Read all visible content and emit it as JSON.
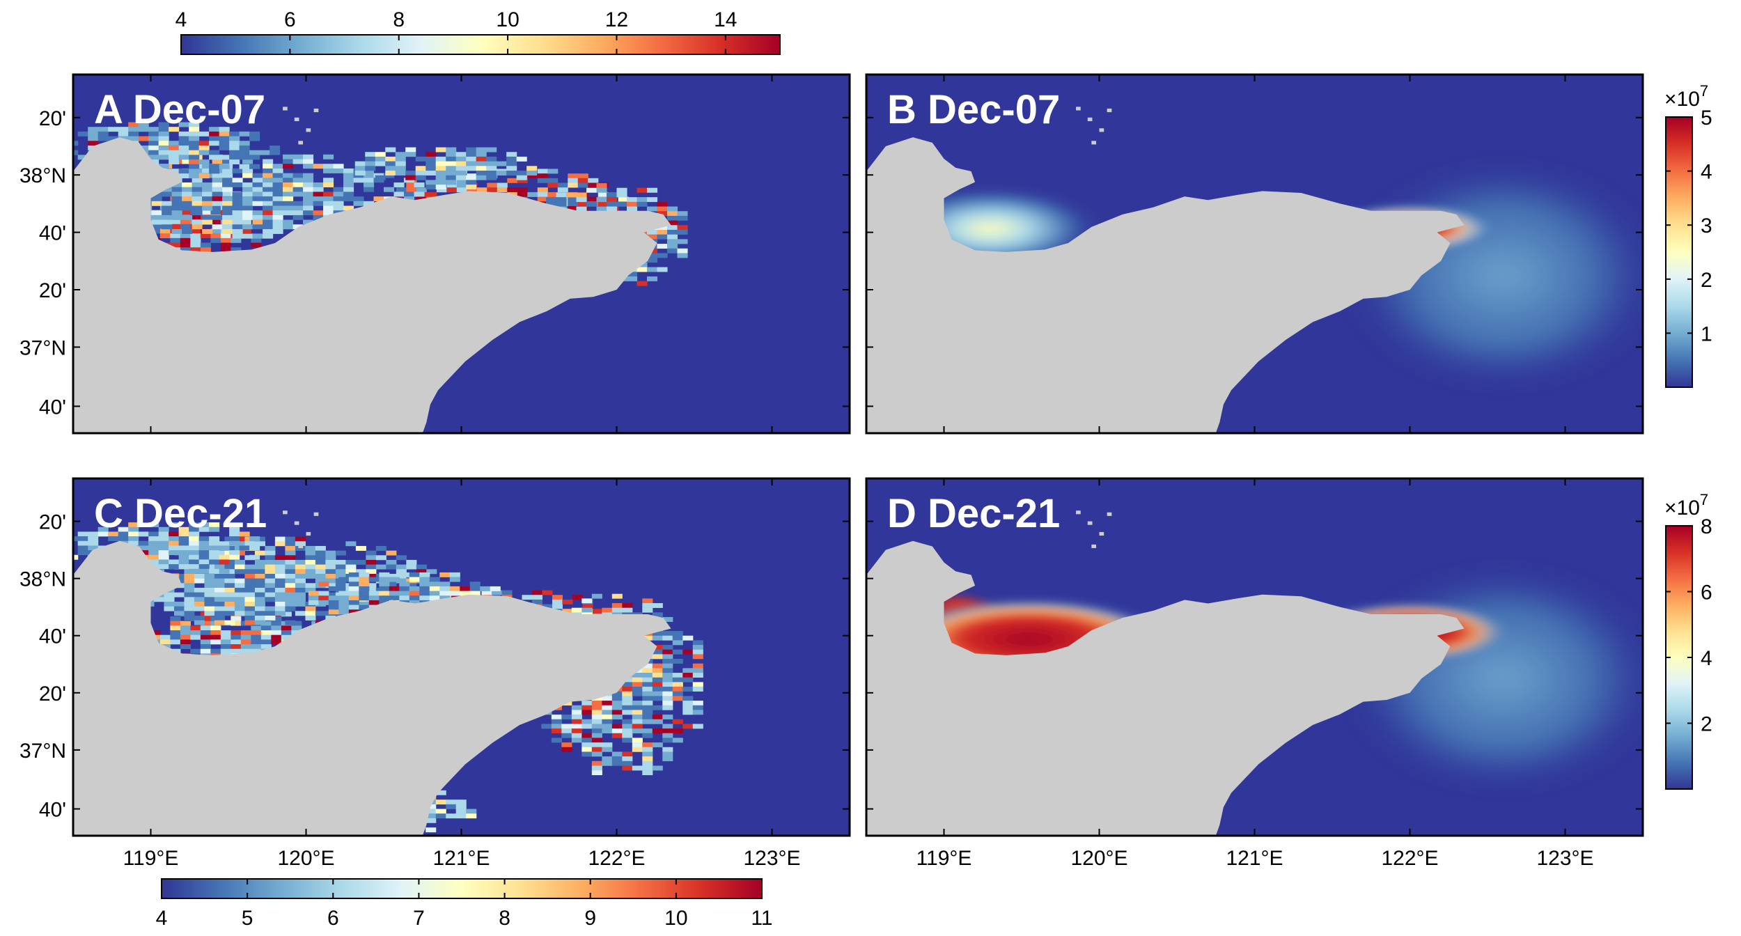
{
  "colors": {
    "sea": "#31379a",
    "land": "#cccccc",
    "frame": "#000000",
    "colormap": [
      "#313695",
      "#4575b4",
      "#74add1",
      "#abd9e9",
      "#e0f3f8",
      "#ffffbf",
      "#fee090",
      "#fdae61",
      "#f46d43",
      "#d73027",
      "#a50026"
    ]
  },
  "map": {
    "lon_range": [
      118.5,
      123.5
    ],
    "lat_range": [
      36.58,
      38.4
    ],
    "lon_ticks": [
      "119°E",
      "120°E",
      "121°E",
      "122°E",
      "123°E"
    ],
    "lat_ticks": [
      "20'",
      "38°N",
      "40'",
      "20'",
      "37°N",
      "40'"
    ]
  },
  "panels": [
    {
      "id": "A",
      "title": "A Dec-07",
      "field": "gridded"
    },
    {
      "id": "B",
      "title": "B Dec-07",
      "field": "smooth"
    },
    {
      "id": "C",
      "title": "C Dec-21",
      "field": "gridded"
    },
    {
      "id": "D",
      "title": "D Dec-21",
      "field": "smooth"
    }
  ],
  "colorbars": {
    "top": {
      "ticks": [
        "4",
        "6",
        "8",
        "10",
        "12",
        "14"
      ],
      "range": [
        4,
        15
      ],
      "tick_values": [
        4,
        6,
        8,
        10,
        12,
        14
      ]
    },
    "bottom": {
      "ticks": [
        "4",
        "5",
        "6",
        "7",
        "8",
        "9",
        "10",
        "11"
      ],
      "range": [
        4,
        11
      ],
      "tick_values": [
        4,
        5,
        6,
        7,
        8,
        9,
        10,
        11
      ]
    },
    "right_top": {
      "exponent_base": "×10",
      "exponent": "7",
      "ticks": [
        "1",
        "2",
        "3",
        "4",
        "5"
      ],
      "range": [
        0,
        5
      ],
      "tick_values": [
        1,
        2,
        3,
        4,
        5
      ]
    },
    "right_bottom": {
      "exponent_base": "×10",
      "exponent": "7",
      "ticks": [
        "2",
        "4",
        "6",
        "8"
      ],
      "range": [
        0,
        8
      ],
      "tick_values": [
        2,
        4,
        6,
        8
      ]
    }
  }
}
